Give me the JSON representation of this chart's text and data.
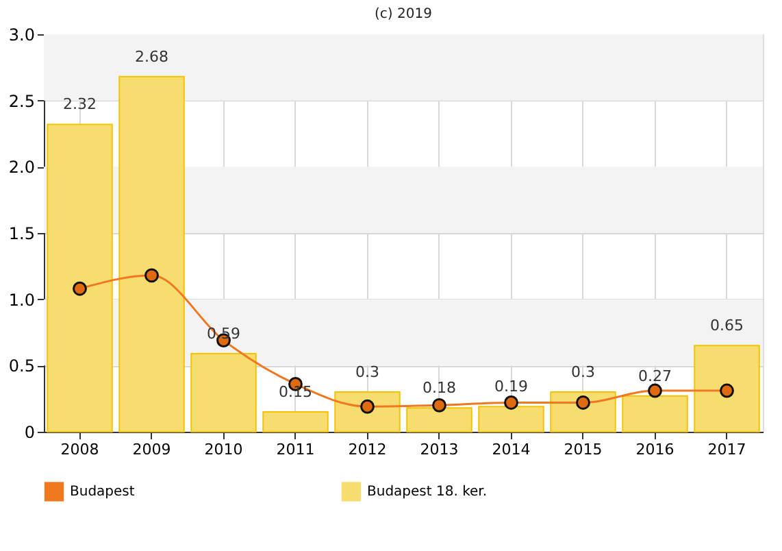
{
  "chart_data": {
    "type": "bar",
    "annotations": [
      "(c) 2019"
    ],
    "categories": [
      "2008",
      "2009",
      "2010",
      "2011",
      "2012",
      "2013",
      "2014",
      "2015",
      "2016",
      "2017"
    ],
    "series": [
      {
        "name": "Budapest",
        "type": "line",
        "color": "#f07820",
        "values": [
          1.08,
          1.18,
          0.69,
          0.36,
          0.19,
          0.2,
          0.22,
          0.22,
          0.31,
          0.31
        ],
        "marker": "circle"
      },
      {
        "name": "Budapest 18. ker.",
        "color": "#f7dc6f",
        "values": [
          2.32,
          2.68,
          0.59,
          0.15,
          0.3,
          0.18,
          0.19,
          0.3,
          0.27,
          0.65
        ],
        "data_labels": true
      }
    ],
    "ylim": [
      0,
      3
    ],
    "yticks": [
      0,
      0.5,
      {
        "value": 1,
        "label": "1.0"
      },
      1.5,
      {
        "value": 2,
        "label": "2.0"
      },
      2.5,
      {
        "value": 3,
        "label": "3.0"
      }
    ],
    "bands": [
      {
        "axis": "y",
        "from": 0.5,
        "to": 1,
        "color": "#f3f3f3"
      },
      {
        "axis": "y",
        "from": 1.5,
        "to": 2,
        "color": "#f3f3f3"
      },
      {
        "axis": "y",
        "from": 2.5,
        "to": 3,
        "color": "#f3f3f3"
      }
    ],
    "grid": true,
    "legend": "bottom"
  }
}
